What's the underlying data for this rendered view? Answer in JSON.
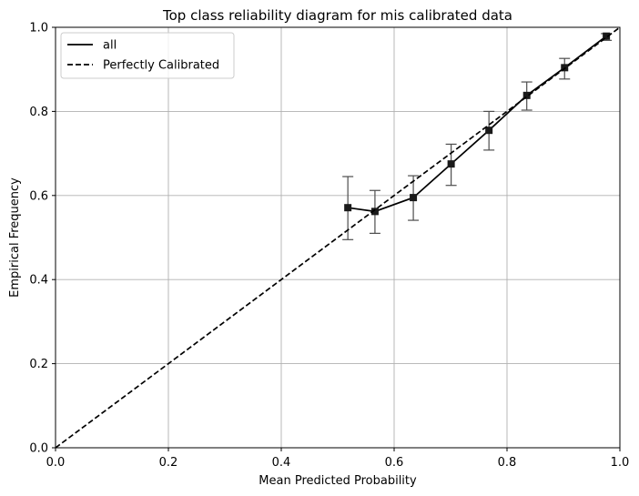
{
  "chart_data": {
    "type": "line",
    "title": "Top class reliability diagram for mis calibrated data",
    "xlabel": "Mean Predicted Probability",
    "ylabel": "Empirical Frequency",
    "xlim": [
      0.0,
      1.0
    ],
    "ylim": [
      0.0,
      1.0
    ],
    "grid": true,
    "legend_placement": "top-left",
    "x_ticks": [
      "0.0",
      "0.2",
      "0.4",
      "0.6",
      "0.8",
      "1.0"
    ],
    "y_ticks": [
      "0.0",
      "0.2",
      "0.4",
      "0.6",
      "0.8",
      "1.0"
    ],
    "series": [
      {
        "name": "all",
        "style": "solid",
        "color": "#000000",
        "marker": "square",
        "points": [
          {
            "x": 0.518,
            "y": 0.571,
            "err_low": 0.495,
            "err_high": 0.645
          },
          {
            "x": 0.566,
            "y": 0.562,
            "err_low": 0.51,
            "err_high": 0.612
          },
          {
            "x": 0.634,
            "y": 0.595,
            "err_low": 0.541,
            "err_high": 0.647
          },
          {
            "x": 0.701,
            "y": 0.675,
            "err_low": 0.624,
            "err_high": 0.722
          },
          {
            "x": 0.768,
            "y": 0.755,
            "err_low": 0.708,
            "err_high": 0.8
          },
          {
            "x": 0.835,
            "y": 0.838,
            "err_low": 0.803,
            "err_high": 0.87
          },
          {
            "x": 0.902,
            "y": 0.904,
            "err_low": 0.877,
            "err_high": 0.926
          },
          {
            "x": 0.976,
            "y": 0.979,
            "err_low": 0.969,
            "err_high": 0.985
          }
        ]
      },
      {
        "name": "Perfectly Calibrated",
        "style": "dashed",
        "color": "#000000",
        "points": [
          {
            "x": 0.0,
            "y": 0.0
          },
          {
            "x": 1.0,
            "y": 1.0
          }
        ]
      }
    ],
    "colors": {
      "grid": "#b0b0b0",
      "errorbar": "#4d4d4d",
      "marker": "#1a1a1a"
    }
  }
}
